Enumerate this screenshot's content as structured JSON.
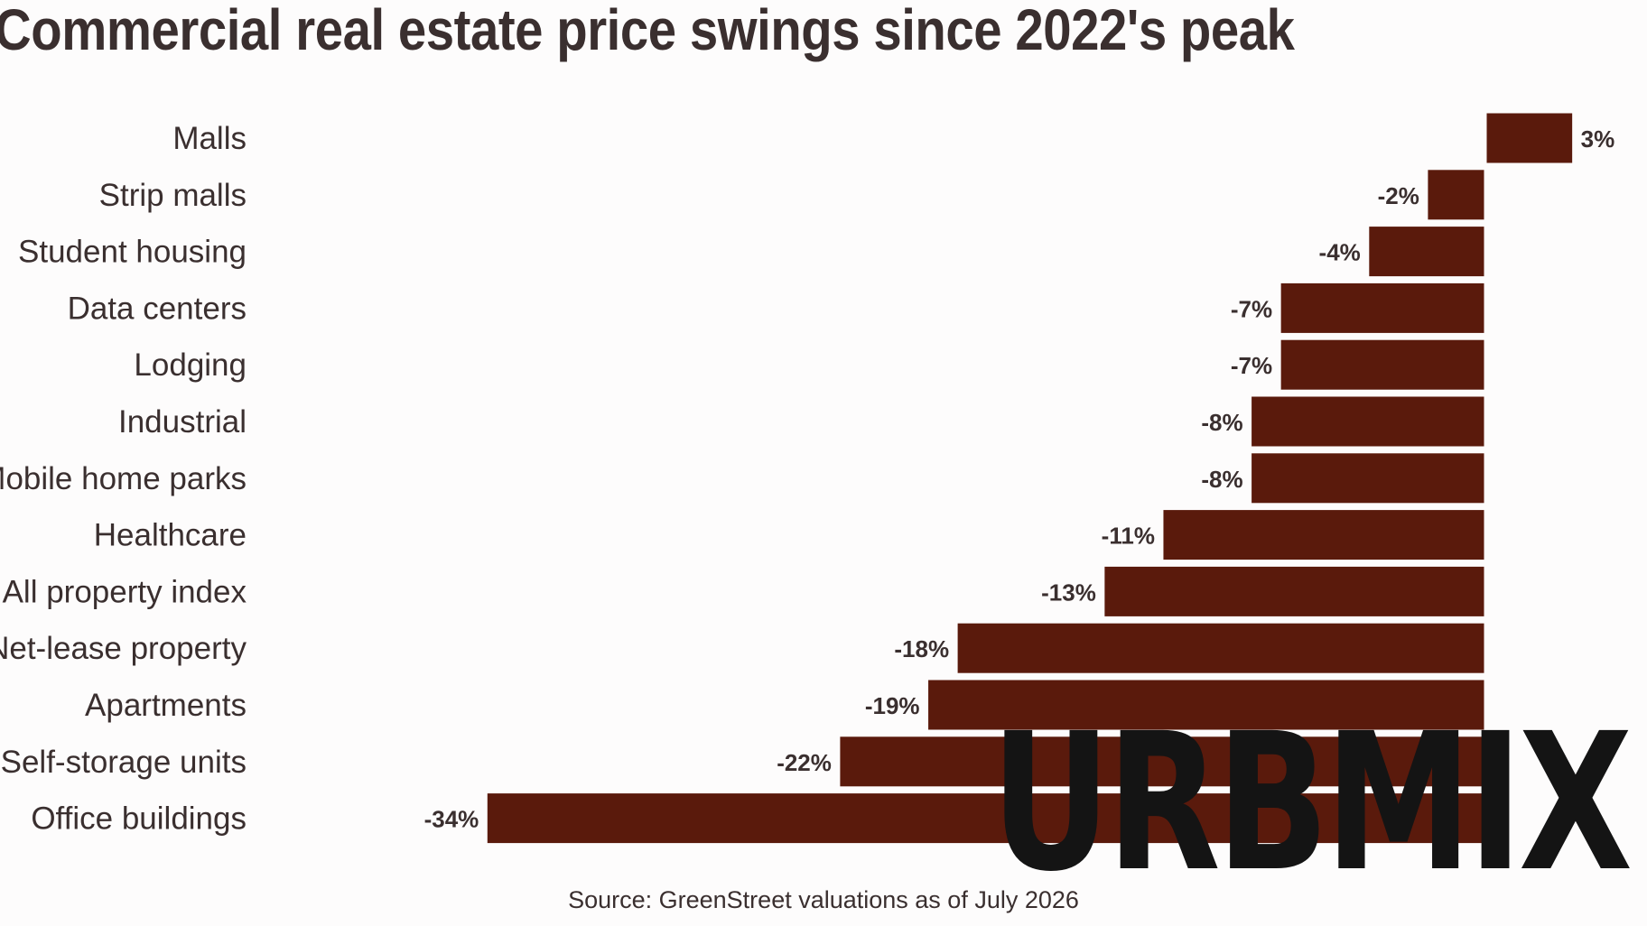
{
  "chart_data": {
    "type": "bar",
    "orientation": "horizontal",
    "title": "Commercial real estate price swings since 2022's peak",
    "categories": [
      "Malls",
      "Strip malls",
      "Student housing",
      "Data centers",
      "Lodging",
      "Industrial",
      "Mobile home parks",
      "Healthcare",
      "All property index",
      "Net-lease property",
      "Apartments",
      "Self-storage units",
      "Office buildings"
    ],
    "values": [
      3,
      -2,
      -4,
      -7,
      -7,
      -8,
      -8,
      -11,
      -13,
      -18,
      -19,
      -22,
      -34
    ],
    "value_labels": [
      "3%",
      "-2%",
      "-4%",
      "-7%",
      "-7%",
      "-8%",
      "-8%",
      "-11%",
      "-13%",
      "-18%",
      "-19%",
      "-22%",
      "-34%"
    ],
    "xlim": [
      -37,
      4
    ],
    "bar_color": "#5a1a0c",
    "grid": false,
    "source": "Source: GreenStreet valuations as of July 2026"
  },
  "watermark": {
    "text": "URBMIX",
    "color": "#141414"
  }
}
